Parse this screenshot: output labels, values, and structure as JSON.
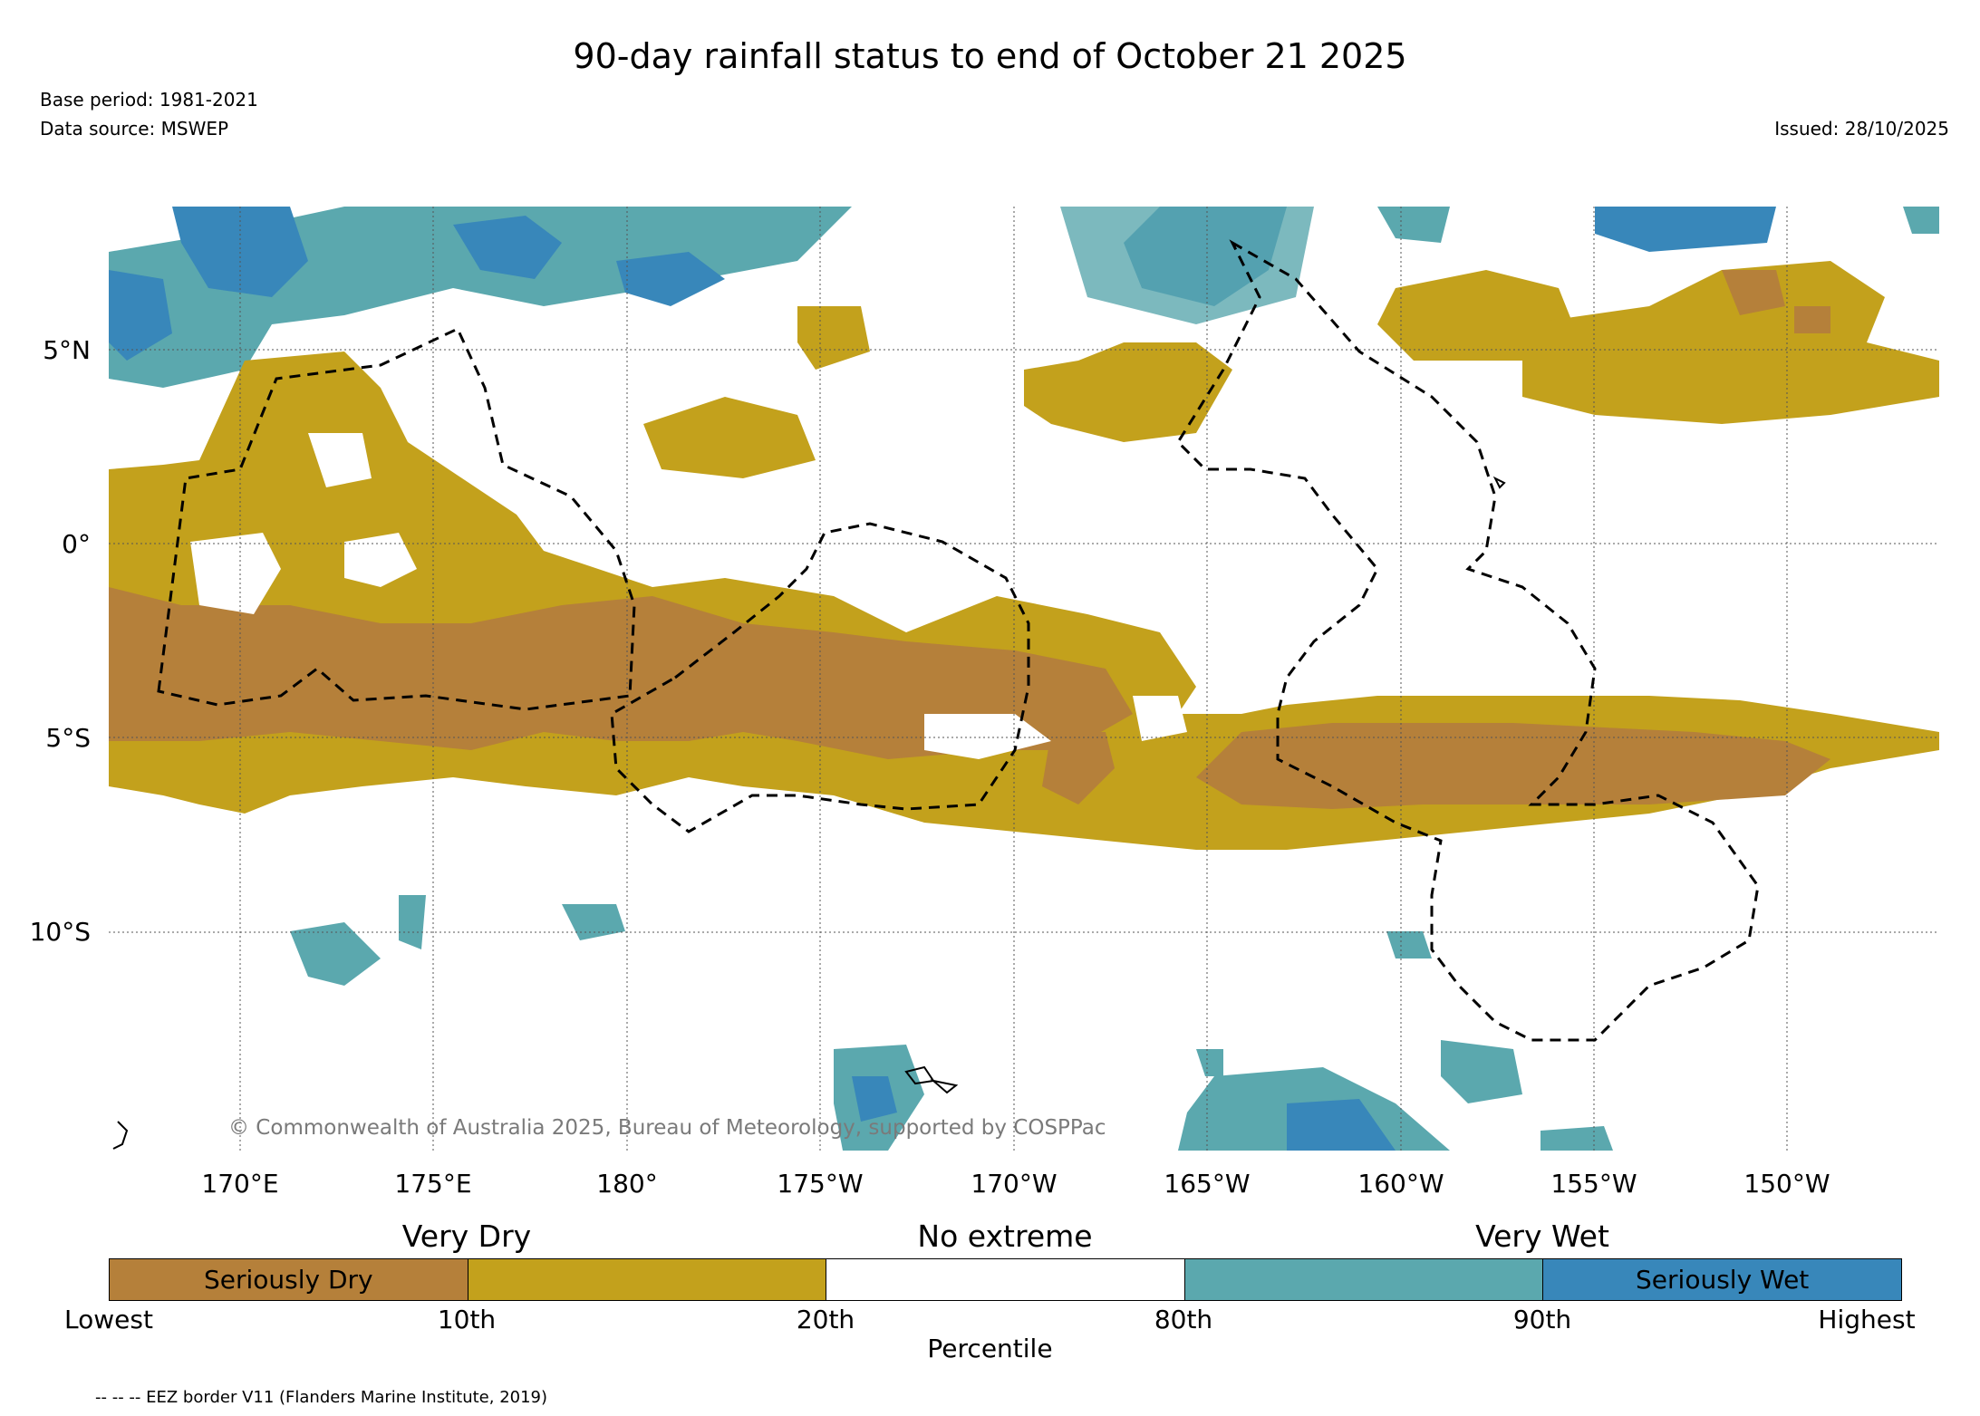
{
  "title": "90-day rainfall status to end of October 21 2025",
  "base_period": "Base period: 1981-2021",
  "data_source": "Data source: MSWEP",
  "issued": "Issued: 28/10/2025",
  "copyright": "© Commonwealth of Australia 2025, Bureau of Meteorology, supported by COSPPac",
  "map": {
    "lat_labels": [
      "5°N",
      "0°",
      "5°S",
      "10°S"
    ],
    "lon_labels": [
      "170°E",
      "175°E",
      "180°",
      "175°W",
      "170°W",
      "165°W",
      "160°W",
      "155°W",
      "150°W"
    ]
  },
  "legend": {
    "categories": {
      "very_dry": "Very Dry",
      "no_extreme": "No extreme",
      "very_wet": "Very Wet"
    },
    "seriously_dry": "Seriously Dry",
    "seriously_wet": "Seriously Wet",
    "ticks": [
      "Lowest",
      "10th",
      "20th",
      "80th",
      "90th",
      "Highest"
    ],
    "axis_label": "Percentile",
    "colors": {
      "seriously_dry": "#b5803a",
      "dry": "#c3a11c",
      "normal": "#ffffff",
      "wet": "#5ba8ae",
      "seriously_wet": "#3887ba"
    }
  },
  "eez_note": "-- -- -- EEZ border V11 (Flanders Marine Institute, 2019)"
}
